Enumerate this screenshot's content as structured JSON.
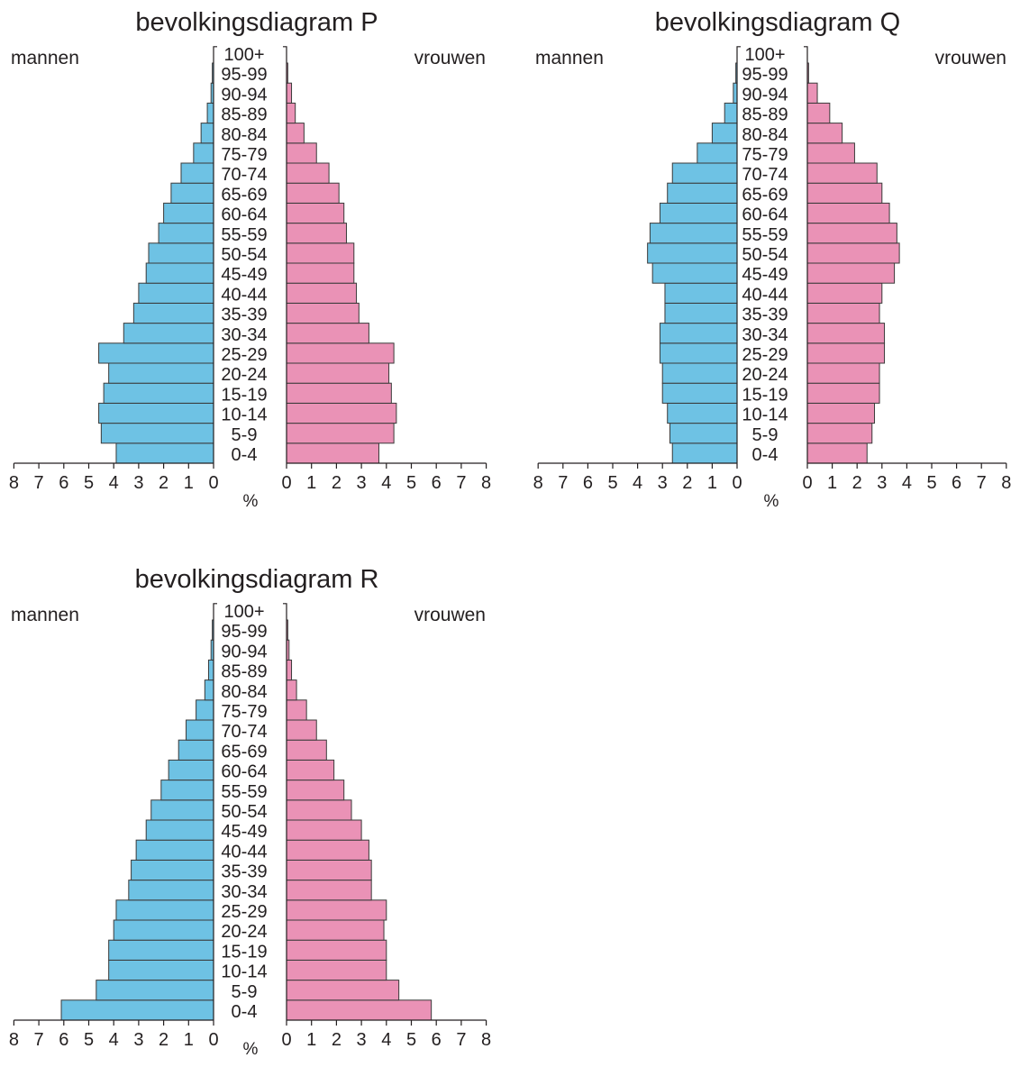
{
  "chart_data": [
    {
      "type": "bar",
      "title": "bevolkingsdiagram P",
      "left_label": "mannen",
      "right_label": "vrouwen",
      "unit_label": "%",
      "xlim": [
        0,
        8
      ],
      "ticks": [
        "0",
        "1",
        "2",
        "3",
        "4",
        "5",
        "6",
        "7",
        "8"
      ],
      "categories": [
        "0-4",
        "5-9",
        "10-14",
        "15-19",
        "20-24",
        "25-29",
        "30-34",
        "35-39",
        "40-44",
        "45-49",
        "50-54",
        "55-59",
        "60-64",
        "65-69",
        "70-74",
        "75-79",
        "80-84",
        "85-89",
        "90-94",
        "95-99",
        "100+"
      ],
      "series": [
        {
          "name": "mannen",
          "values": [
            3.9,
            4.5,
            4.6,
            4.4,
            4.2,
            4.6,
            3.6,
            3.2,
            3.0,
            2.7,
            2.6,
            2.2,
            2.0,
            1.7,
            1.3,
            0.8,
            0.5,
            0.25,
            0.1,
            0.05,
            0.0
          ]
        },
        {
          "name": "vrouwen",
          "values": [
            3.7,
            4.3,
            4.4,
            4.2,
            4.1,
            4.3,
            3.3,
            2.9,
            2.8,
            2.7,
            2.7,
            2.4,
            2.3,
            2.1,
            1.7,
            1.2,
            0.7,
            0.35,
            0.2,
            0.05,
            0.0
          ]
        }
      ],
      "colors": {
        "mannen": "#6ec2e4",
        "vrouwen": "#ea92b6"
      }
    },
    {
      "type": "bar",
      "title": "bevolkingsdiagram Q",
      "left_label": "mannen",
      "right_label": "vrouwen",
      "unit_label": "%",
      "xlim": [
        0,
        8
      ],
      "ticks": [
        "0",
        "1",
        "2",
        "3",
        "4",
        "5",
        "6",
        "7",
        "8"
      ],
      "categories": [
        "0-4",
        "5-9",
        "10-14",
        "15-19",
        "20-24",
        "25-29",
        "30-34",
        "35-39",
        "40-44",
        "45-49",
        "50-54",
        "55-59",
        "60-64",
        "65-69",
        "70-74",
        "75-79",
        "80-84",
        "85-89",
        "90-94",
        "95-99",
        "100+"
      ],
      "series": [
        {
          "name": "mannen",
          "values": [
            2.6,
            2.7,
            2.8,
            3.0,
            3.0,
            3.1,
            3.1,
            2.9,
            2.9,
            3.4,
            3.6,
            3.5,
            3.1,
            2.8,
            2.6,
            1.6,
            1.0,
            0.5,
            0.15,
            0.05,
            0.0
          ]
        },
        {
          "name": "vrouwen",
          "values": [
            2.4,
            2.6,
            2.7,
            2.9,
            2.9,
            3.1,
            3.1,
            2.9,
            3.0,
            3.5,
            3.7,
            3.6,
            3.3,
            3.0,
            2.8,
            1.9,
            1.4,
            0.9,
            0.4,
            0.05,
            0.0
          ]
        }
      ],
      "colors": {
        "mannen": "#6ec2e4",
        "vrouwen": "#ea92b6"
      }
    },
    {
      "type": "bar",
      "title": "bevolkingsdiagram R",
      "left_label": "mannen",
      "right_label": "vrouwen",
      "unit_label": "%",
      "xlim": [
        0,
        8
      ],
      "ticks": [
        "0",
        "1",
        "2",
        "3",
        "4",
        "5",
        "6",
        "7",
        "8"
      ],
      "categories": [
        "0-4",
        "5-9",
        "10-14",
        "15-19",
        "20-24",
        "25-29",
        "30-34",
        "35-39",
        "40-44",
        "45-49",
        "50-54",
        "55-59",
        "60-64",
        "65-69",
        "70-74",
        "75-79",
        "80-84",
        "85-89",
        "90-94",
        "95-99",
        "100+"
      ],
      "series": [
        {
          "name": "mannen",
          "values": [
            6.1,
            4.7,
            4.2,
            4.2,
            4.0,
            3.9,
            3.4,
            3.3,
            3.1,
            2.7,
            2.5,
            2.1,
            1.8,
            1.4,
            1.1,
            0.7,
            0.35,
            0.2,
            0.1,
            0.05,
            0.0
          ]
        },
        {
          "name": "vrouwen",
          "values": [
            5.8,
            4.5,
            4.0,
            4.0,
            3.9,
            4.0,
            3.4,
            3.4,
            3.3,
            3.0,
            2.6,
            2.3,
            1.9,
            1.6,
            1.2,
            0.8,
            0.4,
            0.2,
            0.1,
            0.05,
            0.0
          ]
        }
      ],
      "colors": {
        "mannen": "#6ec2e4",
        "vrouwen": "#ea92b6"
      }
    }
  ]
}
